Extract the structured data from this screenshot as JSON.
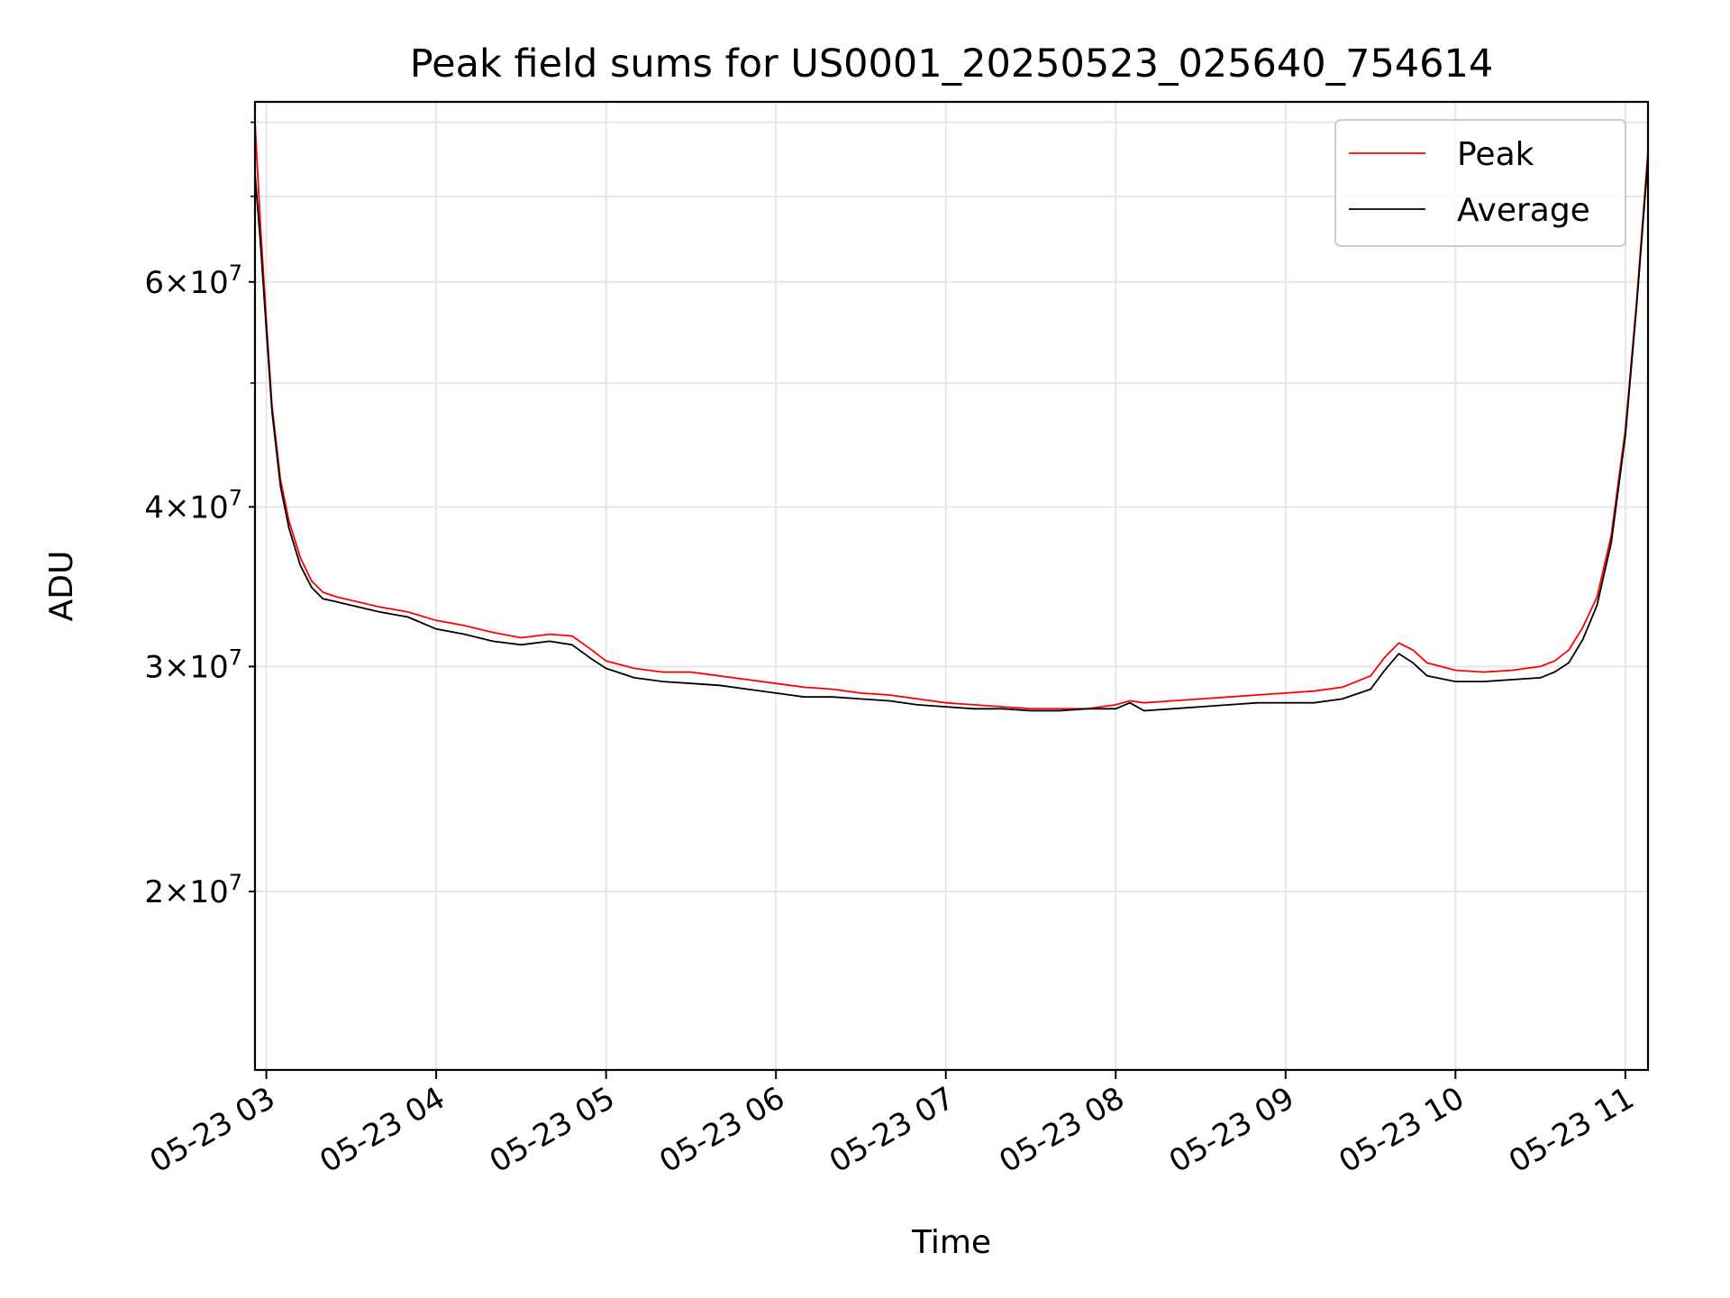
{
  "chart_data": {
    "type": "line",
    "title": "Peak field sums for US0001_20250523_025640_754614",
    "xlabel": "Time",
    "ylabel": "ADU",
    "x_scale": "time",
    "y_scale": "log",
    "xlim": [
      "2025-05-23 02:56",
      "2025-05-23 11:08"
    ],
    "ylim": [
      14500000,
      83000000
    ],
    "grid": true,
    "legend_position": "top-right",
    "x_ticks": [
      "05-23 03",
      "05-23 04",
      "05-23 05",
      "05-23 06",
      "05-23 07",
      "05-23 08",
      "05-23 09",
      "05-23 10",
      "05-23 11"
    ],
    "y_ticks": [
      {
        "value": 20000000,
        "mantissa": "2",
        "base": "10",
        "exp": "7"
      },
      {
        "value": 30000000,
        "mantissa": "3",
        "base": "10",
        "exp": "7"
      },
      {
        "value": 40000000,
        "mantissa": "4",
        "base": "10",
        "exp": "7"
      },
      {
        "value": 60000000,
        "mantissa": "6",
        "base": "10",
        "exp": "7"
      }
    ],
    "series": [
      {
        "name": "Peak",
        "color": "#ff0000",
        "x": [
          "02:56",
          "02:58",
          "03:00",
          "03:02",
          "03:05",
          "03:08",
          "03:12",
          "03:16",
          "03:20",
          "03:25",
          "03:30",
          "03:40",
          "03:50",
          "04:00",
          "04:10",
          "04:20",
          "04:30",
          "04:40",
          "04:48",
          "04:55",
          "05:00",
          "05:10",
          "05:20",
          "05:30",
          "05:40",
          "05:50",
          "06:00",
          "06:10",
          "06:20",
          "06:30",
          "06:40",
          "06:50",
          "07:00",
          "07:10",
          "07:20",
          "07:30",
          "07:40",
          "07:50",
          "08:00",
          "08:05",
          "08:10",
          "08:20",
          "08:30",
          "08:40",
          "08:50",
          "09:00",
          "09:10",
          "09:20",
          "09:30",
          "09:35",
          "09:40",
          "09:45",
          "09:50",
          "10:00",
          "10:10",
          "10:20",
          "10:30",
          "10:35",
          "10:40",
          "10:45",
          "10:50",
          "10:55",
          "11:00",
          "11:04",
          "11:08"
        ],
        "values": [
          80000000,
          66000000,
          56000000,
          48000000,
          42000000,
          39000000,
          36500000,
          35000000,
          34300000,
          34000000,
          33800000,
          33400000,
          33100000,
          32600000,
          32300000,
          31900000,
          31600000,
          31800000,
          31700000,
          30900000,
          30300000,
          29900000,
          29700000,
          29700000,
          29500000,
          29300000,
          29100000,
          28900000,
          28800000,
          28600000,
          28500000,
          28300000,
          28100000,
          28000000,
          27900000,
          27800000,
          27800000,
          27800000,
          28000000,
          28200000,
          28100000,
          28200000,
          28300000,
          28400000,
          28500000,
          28600000,
          28700000,
          28900000,
          29500000,
          30500000,
          31300000,
          30900000,
          30200000,
          29800000,
          29700000,
          29800000,
          30000000,
          30300000,
          30900000,
          32200000,
          34000000,
          38000000,
          46000000,
          58000000,
          76000000
        ]
      },
      {
        "name": "Average",
        "color": "#000000",
        "x": [
          "02:56",
          "02:58",
          "03:00",
          "03:02",
          "03:05",
          "03:08",
          "03:12",
          "03:16",
          "03:20",
          "03:25",
          "03:30",
          "03:40",
          "03:50",
          "04:00",
          "04:10",
          "04:20",
          "04:30",
          "04:40",
          "04:48",
          "04:55",
          "05:00",
          "05:10",
          "05:20",
          "05:30",
          "05:40",
          "05:50",
          "06:00",
          "06:10",
          "06:20",
          "06:30",
          "06:40",
          "06:50",
          "07:00",
          "07:10",
          "07:20",
          "07:30",
          "07:40",
          "07:50",
          "08:00",
          "08:05",
          "08:10",
          "08:20",
          "08:30",
          "08:40",
          "08:50",
          "09:00",
          "09:10",
          "09:20",
          "09:30",
          "09:35",
          "09:40",
          "09:45",
          "09:50",
          "10:00",
          "10:10",
          "10:20",
          "10:30",
          "10:35",
          "10:40",
          "10:45",
          "10:50",
          "10:55",
          "11:00",
          "11:04",
          "11:08"
        ],
        "values": [
          73000000,
          64000000,
          55000000,
          47500000,
          41500000,
          38500000,
          36000000,
          34600000,
          33900000,
          33700000,
          33500000,
          33100000,
          32800000,
          32100000,
          31800000,
          31400000,
          31200000,
          31400000,
          31200000,
          30400000,
          29900000,
          29400000,
          29200000,
          29100000,
          29000000,
          28800000,
          28600000,
          28400000,
          28400000,
          28300000,
          28200000,
          28000000,
          27900000,
          27800000,
          27800000,
          27700000,
          27700000,
          27800000,
          27800000,
          28100000,
          27700000,
          27800000,
          27900000,
          28000000,
          28100000,
          28100000,
          28100000,
          28300000,
          28800000,
          29800000,
          30700000,
          30200000,
          29500000,
          29200000,
          29200000,
          29300000,
          29400000,
          29700000,
          30200000,
          31500000,
          33500000,
          37500000,
          45500000,
          57500000,
          75000000
        ]
      }
    ]
  }
}
